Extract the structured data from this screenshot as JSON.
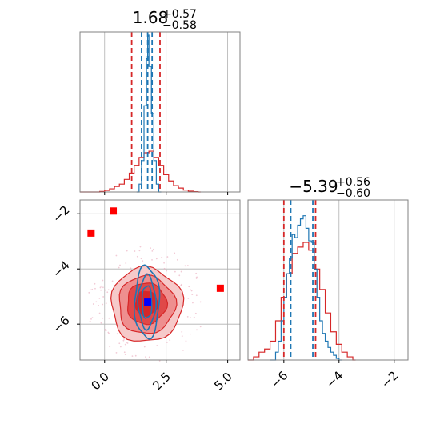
{
  "figure": {
    "colors": {
      "red": "#d62728",
      "blue": "#1f77b4",
      "marker_blue": "#0000ff",
      "marker_red": "#ff0000",
      "grid": "#b0b0b0",
      "axes": "#808080"
    }
  },
  "chart_data": [
    {
      "type": "histogram",
      "panel": "top-left",
      "title": {
        "value": "1.68",
        "sup": "+0.57",
        "sub": "−0.58"
      },
      "xlim": [
        -1.0,
        5.5
      ],
      "xgrid": [
        0.0,
        2.5,
        5.0
      ],
      "grid": true,
      "series": [
        {
          "color": "#d62728",
          "bins": [
            [
              -1.0,
              0
            ],
            [
              -0.8,
              0
            ],
            [
              -0.6,
              0
            ],
            [
              -0.4,
              0
            ],
            [
              -0.2,
              0.003
            ],
            [
              0.0,
              0.01
            ],
            [
              0.2,
              0.02
            ],
            [
              0.4,
              0.035
            ],
            [
              0.6,
              0.05
            ],
            [
              0.8,
              0.08
            ],
            [
              1.0,
              0.12
            ],
            [
              1.2,
              0.17
            ],
            [
              1.4,
              0.22
            ],
            [
              1.6,
              0.25
            ],
            [
              1.8,
              0.26
            ],
            [
              2.0,
              0.22
            ],
            [
              2.2,
              0.17
            ],
            [
              2.4,
              0.11
            ],
            [
              2.6,
              0.07
            ],
            [
              2.8,
              0.04
            ],
            [
              3.0,
              0.025
            ],
            [
              3.2,
              0.012
            ],
            [
              3.4,
              0.005
            ],
            [
              3.6,
              0.002
            ],
            [
              3.8,
              0
            ]
          ],
          "quantiles": [
            1.1,
            2.25
          ]
        },
        {
          "color": "#1f77b4",
          "bins": [
            [
              1.3,
              0
            ],
            [
              1.4,
              0.05
            ],
            [
              1.5,
              0.2
            ],
            [
              1.6,
              0.55
            ],
            [
              1.7,
              0.85
            ],
            [
              1.75,
              1.0
            ],
            [
              1.8,
              0.8
            ],
            [
              1.9,
              0.5
            ],
            [
              2.0,
              0.2
            ],
            [
              2.1,
              0.05
            ],
            [
              2.2,
              0
            ]
          ],
          "quantiles": [
            1.5,
            1.93
          ]
        }
      ],
      "xtick_labels_shown": false
    },
    {
      "type": "contour-scatter",
      "panel": "bottom-left",
      "xlim": [
        -1.0,
        5.5
      ],
      "ylim": [
        -7.3,
        -1.5
      ],
      "xticks": [
        0.0,
        2.5,
        5.0
      ],
      "xtick_labels": [
        "0.0",
        "2.5",
        "5.0"
      ],
      "yticks": [
        -2,
        -4,
        -6
      ],
      "ytick_labels": [
        "−2",
        "−4",
        "−6"
      ],
      "grid": true,
      "red_contours": [
        {
          "cx": 1.7,
          "cy": -5.3,
          "rx": 1.45,
          "ry": 1.35,
          "fill": "#f6c9c9"
        },
        {
          "cx": 1.7,
          "cy": -5.3,
          "rx": 1.15,
          "ry": 1.05,
          "fill": "#ee8f8f"
        },
        {
          "cx": 1.7,
          "cy": -5.25,
          "rx": 0.8,
          "ry": 0.75,
          "fill": "#e04848"
        },
        {
          "cx": 1.7,
          "cy": -5.25,
          "rx": 0.45,
          "ry": 0.45,
          "fill": "#d62728"
        }
      ],
      "blue_contours": [
        {
          "cx": 1.72,
          "cy": -5.2,
          "rx": 0.5,
          "ry": 1.3
        },
        {
          "cx": 1.72,
          "cy": -5.2,
          "rx": 0.35,
          "ry": 0.95
        },
        {
          "cx": 1.72,
          "cy": -5.2,
          "rx": 0.2,
          "ry": 0.6
        }
      ],
      "markers": [
        {
          "x": -0.55,
          "y": -2.7,
          "color": "#ff0000"
        },
        {
          "x": 0.35,
          "y": -1.9,
          "color": "#ff0000"
        },
        {
          "x": 4.7,
          "y": -4.7,
          "color": "#ff0000"
        },
        {
          "x": 1.75,
          "y": -5.2,
          "color": "#0000ff"
        }
      ]
    },
    {
      "type": "histogram",
      "panel": "bottom-right",
      "title": {
        "value": "−5.39",
        "sup": "+0.56",
        "sub": "−0.60"
      },
      "xlim": [
        -7.3,
        -1.5
      ],
      "xticks": [
        -6,
        -4,
        -2
      ],
      "xtick_labels": [
        "−6",
        "−4",
        "−2"
      ],
      "grid": true,
      "series": [
        {
          "color": "#d62728",
          "bins": [
            [
              -7.3,
              0
            ],
            [
              -7.1,
              0.02
            ],
            [
              -6.9,
              0.05
            ],
            [
              -6.7,
              0.07
            ],
            [
              -6.5,
              0.12
            ],
            [
              -6.3,
              0.25
            ],
            [
              -6.1,
              0.4
            ],
            [
              -5.9,
              0.55
            ],
            [
              -5.7,
              0.68
            ],
            [
              -5.5,
              0.72
            ],
            [
              -5.3,
              0.75
            ],
            [
              -5.1,
              0.7
            ],
            [
              -4.9,
              0.58
            ],
            [
              -4.7,
              0.45
            ],
            [
              -4.5,
              0.3
            ],
            [
              -4.3,
              0.18
            ],
            [
              -4.1,
              0.1
            ],
            [
              -3.9,
              0.05
            ],
            [
              -3.7,
              0.02
            ],
            [
              -3.5,
              0
            ]
          ],
          "quantiles": [
            -6.0,
            -4.85
          ]
        },
        {
          "color": "#1f77b4",
          "bins": [
            [
              -6.5,
              0
            ],
            [
              -6.3,
              0.05
            ],
            [
              -6.2,
              0.12
            ],
            [
              -6.1,
              0.25
            ],
            [
              -6.0,
              0.4
            ],
            [
              -5.9,
              0.55
            ],
            [
              -5.8,
              0.65
            ],
            [
              -5.7,
              0.8
            ],
            [
              -5.6,
              0.78
            ],
            [
              -5.5,
              0.86
            ],
            [
              -5.4,
              0.9
            ],
            [
              -5.3,
              0.92
            ],
            [
              -5.2,
              0.84
            ],
            [
              -5.1,
              0.76
            ],
            [
              -5.0,
              0.75
            ],
            [
              -4.9,
              0.58
            ],
            [
              -4.8,
              0.4
            ],
            [
              -4.7,
              0.25
            ],
            [
              -4.6,
              0.17
            ],
            [
              -4.5,
              0.12
            ],
            [
              -4.4,
              0.08
            ],
            [
              -4.3,
              0.05
            ],
            [
              -4.2,
              0.03
            ],
            [
              -4.1,
              0.01
            ],
            [
              -4.0,
              0
            ]
          ],
          "quantiles": [
            -5.75,
            -4.95
          ]
        }
      ]
    }
  ]
}
